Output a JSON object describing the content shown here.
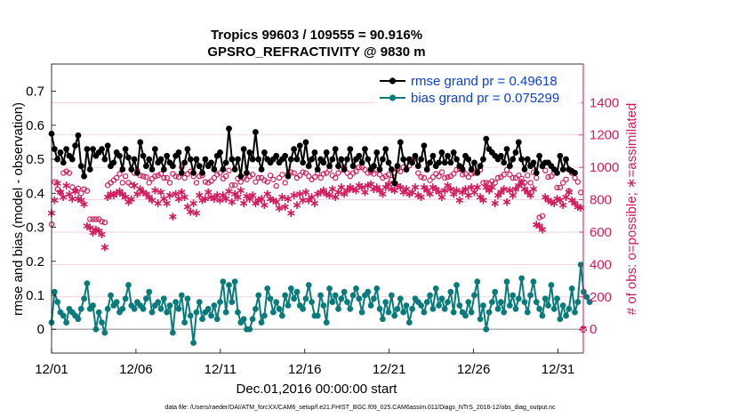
{
  "chart_data": {
    "type": "line",
    "title": "Tropics 99603 / 109555 = 90.916%",
    "subtitle": "GPSRO_REFRACTIVITY @ 9830 m",
    "xlabel": "Dec.01,2016 00:00:00 start",
    "ylabel": "rmse and bias (model - observation)",
    "y2label": "# of obs: o=possible; ∗=assimilated",
    "footnote": "data file: /Users/raeder/DAI/ATM_forcXX/CAM6_setup/f.e21.FHIST_BGC.f09_025.CAM6assim.011/Diags_NTrS_2016-12/obs_diag_output.nc",
    "xlim": [
      0,
      31.5
    ],
    "ylim": [
      -0.07,
      0.78
    ],
    "y2lim": [
      -147,
      1638
    ],
    "x_tick_positions": [
      0,
      5,
      10,
      15,
      20,
      25,
      30
    ],
    "x_tick_labels": [
      "12/01",
      "12/06",
      "12/11",
      "12/16",
      "12/21",
      "12/26",
      "12/31"
    ],
    "y_ticks": [
      0,
      0.1,
      0.2,
      0.3,
      0.4,
      0.5,
      0.6,
      0.7
    ],
    "y_tick_labels": [
      "0",
      "0.1",
      "0.2",
      "0.3",
      "0.4",
      "0.5",
      "0.6",
      "0.7"
    ],
    "y2_ticks": [
      0,
      200,
      400,
      600,
      800,
      1000,
      1200,
      1400
    ],
    "y2_tick_labels": [
      "0",
      "200",
      "400",
      "600",
      "800",
      "1000",
      "1200",
      "1400"
    ],
    "legend": {
      "position": "top-right"
    },
    "colors": {
      "rmse": "#000000",
      "bias": "#0a7b7b",
      "obs": "#d01a5c",
      "zero_line": "#b0b0b0",
      "grid": "#f2c9d6",
      "legend_text": "#0b3fd0"
    },
    "series": [
      {
        "name": "rmse grand pr = 0.49618",
        "kind": "rmse",
        "values": [
          0.575,
          0.53,
          0.5,
          0.52,
          0.49,
          0.53,
          0.51,
          0.5,
          0.54,
          0.57,
          0.48,
          0.45,
          0.53,
          0.47,
          0.53,
          0.51,
          0.52,
          0.53,
          0.5,
          0.54,
          0.48,
          0.49,
          0.52,
          0.51,
          0.47,
          0.53,
          0.505,
          0.47,
          0.5,
          0.46,
          0.55,
          0.51,
          0.48,
          0.5,
          0.47,
          0.53,
          0.49,
          0.5,
          0.47,
          0.51,
          0.49,
          0.48,
          0.51,
          0.52,
          0.46,
          0.49,
          0.53,
          0.5,
          0.46,
          0.5,
          0.48,
          0.46,
          0.5,
          0.48,
          0.49,
          0.47,
          0.51,
          0.52,
          0.47,
          0.49,
          0.59,
          0.5,
          0.47,
          0.5,
          0.45,
          0.53,
          0.46,
          0.52,
          0.5,
          0.58,
          0.5,
          0.47,
          0.52,
          0.5,
          0.49,
          0.5,
          0.51,
          0.49,
          0.5,
          0.51,
          0.45,
          0.5,
          0.53,
          0.5,
          0.54,
          0.49,
          0.55,
          0.48,
          0.5,
          0.52,
          0.47,
          0.5,
          0.49,
          0.52,
          0.48,
          0.5,
          0.53,
          0.48,
          0.5,
          0.47,
          0.5,
          0.53,
          0.48,
          0.5,
          0.51,
          0.49,
          0.53,
          0.5,
          0.47,
          0.48,
          0.52,
          0.47,
          0.5,
          0.53,
          0.49,
          0.47,
          0.43,
          0.48,
          0.55,
          0.5,
          0.47,
          0.5,
          0.49,
          0.51,
          0.48,
          0.5,
          0.54,
          0.47,
          0.49,
          0.51,
          0.48,
          0.49,
          0.52,
          0.49,
          0.51,
          0.49,
          0.52,
          0.5,
          0.48,
          0.47,
          0.51,
          0.5,
          0.47,
          0.49,
          0.46,
          0.48,
          0.5,
          0.56,
          0.53,
          0.52,
          0.51,
          0.5,
          0.51,
          0.49,
          0.53,
          0.48,
          0.5,
          0.52,
          0.55,
          0.5,
          0.47,
          0.5,
          0.48,
          0.49,
          0.46,
          0.51,
          0.48,
          0.49,
          0.49,
          0.48,
          0.47,
          0.46,
          0.51,
          0.47,
          0.5,
          0.47,
          0.465,
          0.46
        ]
      },
      {
        "name": "bias grand pr = 0.075299",
        "kind": "bias",
        "values": [
          0.02,
          0.11,
          0.08,
          0.05,
          0.04,
          0.02,
          0.06,
          0.05,
          0.04,
          0.03,
          0.06,
          0.09,
          0.135,
          0.06,
          0.07,
          0.0,
          0.05,
          0.02,
          -0.01,
          0.06,
          0.1,
          0.07,
          0.08,
          0.05,
          0.06,
          0.09,
          0.13,
          0.07,
          0.06,
          0.08,
          0.07,
          0.06,
          0.09,
          0.11,
          0.05,
          0.07,
          0.08,
          0.06,
          0.09,
          0.05,
          0.07,
          -0.01,
          0.08,
          0.06,
          0.1,
          0.02,
          0.09,
          0.04,
          -0.04,
          0.05,
          0.08,
          0.03,
          0.05,
          0.06,
          0.04,
          0.07,
          0.03,
          0.08,
          0.14,
          0.05,
          0.13,
          0.08,
          0.14,
          0.05,
          0.02,
          0.03,
          0.0,
          0.0,
          0.03,
          0.06,
          0.1,
          0.02,
          0.04,
          0.12,
          0.09,
          0.05,
          0.08,
          0.06,
          0.04,
          0.1,
          0.07,
          0.12,
          0.09,
          0.11,
          0.07,
          0.06,
          0.09,
          0.13,
          0.08,
          0.04,
          0.04,
          0.1,
          0.07,
          0.02,
          0.12,
          0.08,
          0.1,
          0.06,
          0.09,
          0.11,
          0.08,
          0.06,
          0.1,
          0.12,
          0.09,
          0.05,
          0.1,
          0.11,
          0.07,
          0.09,
          0.12,
          0.06,
          0.03,
          0.08,
          0.05,
          0.1,
          0.04,
          0.06,
          0.09,
          0.05,
          0.07,
          0.02,
          0.06,
          0.09,
          0.08,
          0.07,
          0.05,
          0.08,
          0.1,
          0.06,
          0.12,
          0.07,
          0.09,
          0.06,
          0.08,
          0.11,
          0.05,
          0.13,
          0.07,
          0.05,
          0.04,
          0.08,
          0.05,
          0.1,
          0.14,
          0.03,
          0.07,
          0.0,
          0.05,
          0.08,
          0.11,
          0.06,
          0.08,
          0.05,
          0.14,
          0.07,
          0.1,
          0.06,
          0.09,
          0.15,
          0.08,
          0.05,
          0.1,
          0.14,
          0.08,
          0.06,
          0.04,
          0.09,
          0.07,
          0.13,
          0.06,
          0.09,
          0.03,
          0.07,
          0.04,
          0.06,
          0.12,
          0.05,
          0.08,
          0.19,
          0.11,
          0.095,
          0.08
        ]
      },
      {
        "name": "obs possible",
        "kind": "possible",
        "axis": "right",
        "values": [
          648,
          910,
          865,
          845,
          965,
          975,
          965,
          878,
          858,
          870,
          840,
          865,
          855,
          680,
          680,
          680,
          680,
          665,
          660,
          890,
          905,
          920,
          935,
          960,
          905,
          945,
          905,
          890,
          965,
          980,
          950,
          945,
          940,
          905,
          930,
          945,
          950,
          960,
          935,
          935,
          905,
          960,
          945,
          940,
          1000,
          935,
          960,
          975,
          945,
          905,
          945,
          950,
          910,
          905,
          915,
          935,
          955,
          965,
          930,
          945,
          980,
          890,
          890,
          930,
          910,
          935,
          925,
          945,
          955,
          910,
          935,
          935,
          920,
          910,
          950,
          925,
          885,
          935,
          955,
          905,
          960,
          970,
          965,
          935,
          950,
          970,
          965,
          945,
          925,
          940,
          965,
          935,
          960,
          965,
          985,
          950,
          935,
          965,
          985,
          1000,
          965,
          945,
          965,
          975,
          1000,
          1000,
          985,
          965,
          970,
          960,
          985,
          955,
          935,
          945,
          955,
          925,
          965,
          985,
          975,
          1000,
          985,
          1010,
          1045,
          1055,
          965,
          940,
          935,
          985,
          920,
          940,
          960,
          945,
          970,
          935,
          940,
          945,
          960,
          985,
          990,
          955,
          960,
          940,
          960,
          965,
          975,
          985,
          905,
          905,
          900,
          915,
          905,
          935,
          940,
          955,
          985,
          955,
          935,
          935,
          950,
          930,
          905,
          950,
          905,
          970,
          935,
          690,
          700,
          980,
          940,
          945,
          965,
          875,
          875,
          905,
          925,
          855,
          965,
          935,
          910,
          845
        ]
      },
      {
        "name": "obs assimilated",
        "kind": "assimilated",
        "axis": "right",
        "values": [
          720,
          800,
          905,
          850,
          820,
          890,
          835,
          810,
          855,
          810,
          800,
          775,
          640,
          630,
          600,
          620,
          610,
          590,
          510,
          820,
          840,
          830,
          845,
          855,
          835,
          820,
          790,
          805,
          890,
          840,
          870,
          850,
          840,
          820,
          800,
          860,
          780,
          850,
          810,
          780,
          830,
          700,
          840,
          810,
          850,
          820,
          760,
          730,
          780,
          720,
          830,
          800,
          810,
          850,
          820,
          810,
          830,
          800,
          830,
          810,
          855,
          790,
          840,
          820,
          860,
          780,
          825,
          810,
          830,
          780,
          800,
          810,
          770,
          840,
          810,
          800,
          790,
          750,
          820,
          760,
          810,
          720,
          830,
          770,
          840,
          800,
          850,
          800,
          820,
          780,
          840,
          850,
          860,
          840,
          830,
          870,
          820,
          850,
          880,
          840,
          860,
          880,
          870,
          860,
          890,
          880,
          850,
          890,
          900,
          870,
          880,
          860,
          840,
          880,
          900,
          870,
          860,
          890,
          880,
          850,
          870,
          840,
          850,
          880,
          830,
          820,
          880,
          860,
          840,
          880,
          870,
          850,
          820,
          860,
          890,
          870,
          840,
          860,
          800,
          850,
          870,
          830,
          880,
          850,
          880,
          820,
          800,
          880,
          860,
          880,
          780,
          830,
          850,
          870,
          790,
          860,
          830,
          870,
          890,
          910,
          870,
          850,
          830,
          870,
          650,
          640,
          620,
          820,
          800,
          790,
          780,
          810,
          800,
          770,
          820,
          850,
          800,
          780,
          760,
          755
        ]
      }
    ]
  }
}
